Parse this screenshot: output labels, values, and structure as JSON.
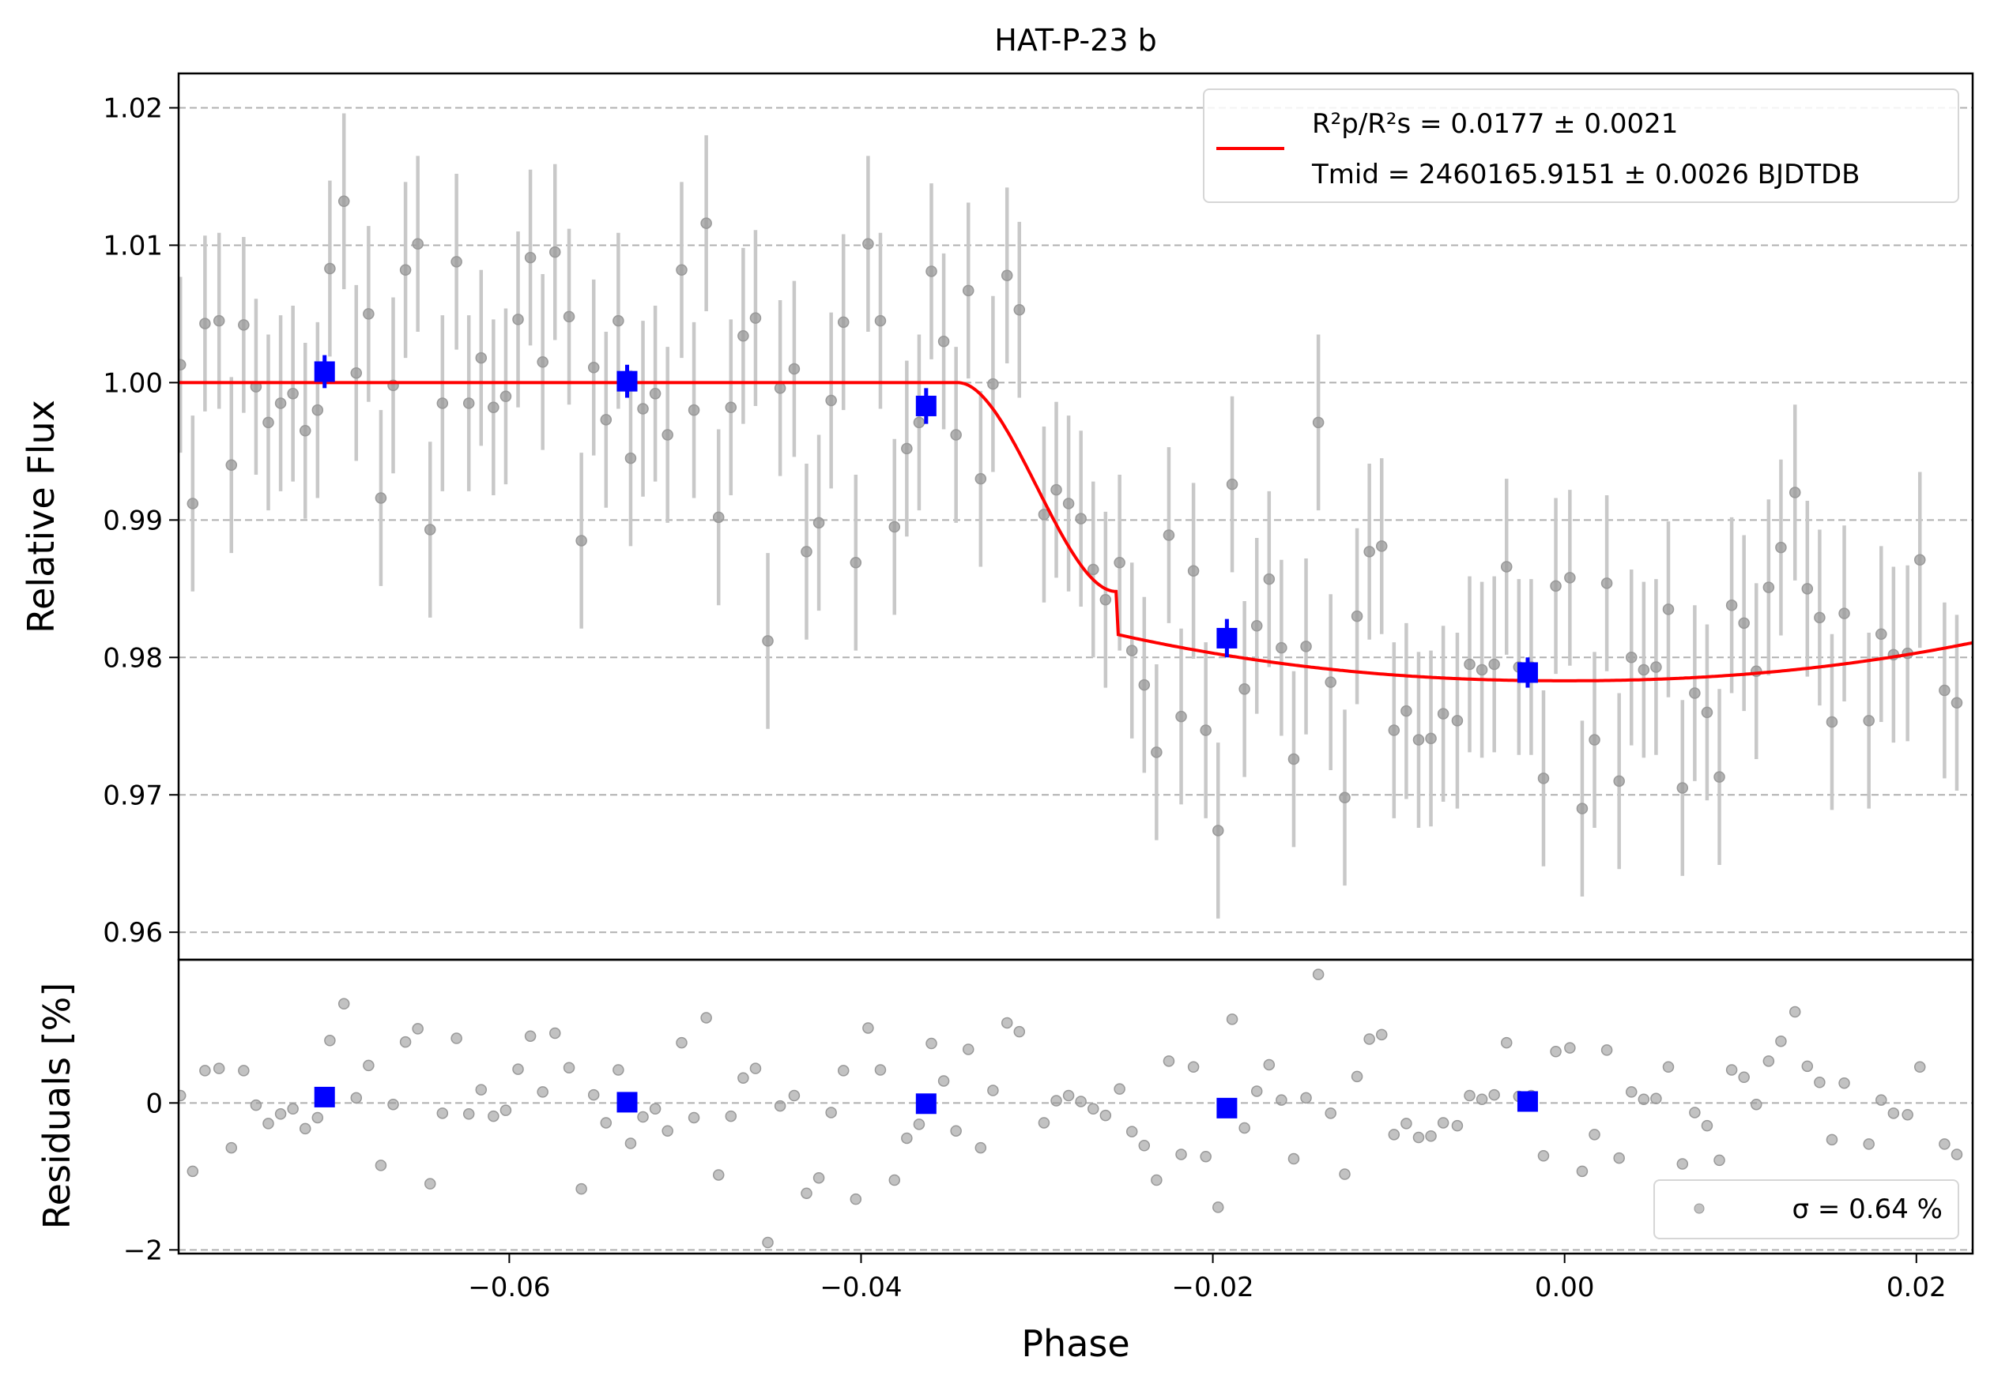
{
  "chart_data": {
    "type": "scatter",
    "title": "HAT-P-23 b",
    "top_panel": {
      "ylabel": "Relative Flux",
      "ylim": [
        0.958,
        1.0225
      ],
      "yticks": [
        {
          "v": 0.96,
          "label": "0.96"
        },
        {
          "v": 0.97,
          "label": "0.97"
        },
        {
          "v": 0.98,
          "label": "0.98"
        },
        {
          "v": 0.99,
          "label": "0.99"
        },
        {
          "v": 1.0,
          "label": "1.00"
        },
        {
          "v": 1.01,
          "label": "1.01"
        },
        {
          "v": 1.02,
          "label": "1.02"
        }
      ],
      "grid": true,
      "legend_position": "top-right",
      "legend": {
        "model_line_1": "R²p/R²s = 0.0177 ± 0.0021",
        "model_line_2": "Tmid = 2460165.9151 ± 0.0026 BJDTDB"
      },
      "binned_points": [
        {
          "x": -0.0705,
          "y": 1.0008,
          "err": 0.0012
        },
        {
          "x": -0.0533,
          "y": 1.0001,
          "err": 0.0012
        },
        {
          "x": -0.0363,
          "y": 0.9983,
          "err": 0.0013
        },
        {
          "x": -0.0192,
          "y": 0.9814,
          "err": 0.0014
        },
        {
          "x": -0.0021,
          "y": 0.9789,
          "err": 0.0011
        }
      ],
      "model": {
        "baseline": 1.0,
        "depth": 0.0217,
        "ingress_start": -0.0345,
        "ingress_end": -0.0255,
        "ingress_depth": 0.0152,
        "mid": 0.0,
        "egress_half_width": 0.0345
      },
      "point_error": 0.0064
    },
    "bottom_panel": {
      "ylabel": "Residuals [%]",
      "ylim": [
        -2.05,
        1.95
      ],
      "yticks": [
        {
          "v": -2,
          "label": "−2"
        },
        {
          "v": 0,
          "label": "0"
        }
      ],
      "gridlines": [
        -2,
        0
      ],
      "legend_position": "bottom-right",
      "legend": "σ = 0.64 %",
      "binned_residuals": [
        {
          "x": -0.0705,
          "y": 0.08
        },
        {
          "x": -0.0533,
          "y": 0.01
        },
        {
          "x": -0.0363,
          "y": -0.01
        },
        {
          "x": -0.0192,
          "y": -0.07
        },
        {
          "x": -0.0021,
          "y": 0.02
        }
      ]
    },
    "xlabel": "Phase",
    "xlim": [
      -0.0788,
      0.0232
    ],
    "xticks": [
      {
        "v": -0.06,
        "label": "−0.06"
      },
      {
        "v": -0.04,
        "label": "−0.04"
      },
      {
        "v": -0.02,
        "label": "−0.02"
      },
      {
        "v": 0.0,
        "label": "0.00"
      },
      {
        "v": 0.02,
        "label": "0.02"
      }
    ],
    "colors": {
      "model": "#ff0000",
      "binned": "#0000ff",
      "points": "#999999",
      "errorbars": "#c8c8c8",
      "grid": "#b0b0b0"
    },
    "points": [
      [
        -0.0787,
        1.0013
      ],
      [
        -0.078,
        0.9912
      ],
      [
        -0.0773,
        1.0043
      ],
      [
        -0.0765,
        1.0045
      ],
      [
        -0.0758,
        0.994
      ],
      [
        -0.0751,
        1.0042
      ],
      [
        -0.0744,
        0.9997
      ],
      [
        -0.0737,
        0.9971
      ],
      [
        -0.073,
        0.9985
      ],
      [
        -0.0723,
        0.9992
      ],
      [
        -0.0716,
        0.9965
      ],
      [
        -0.0709,
        0.998
      ],
      [
        -0.0702,
        1.0083
      ],
      [
        -0.0694,
        1.0132
      ],
      [
        -0.0687,
        1.0007
      ],
      [
        -0.068,
        1.005
      ],
      [
        -0.0673,
        0.9916
      ],
      [
        -0.0666,
        0.9998
      ],
      [
        -0.0659,
        1.0082
      ],
      [
        -0.0652,
        1.0101
      ],
      [
        -0.0645,
        0.9893
      ],
      [
        -0.0638,
        0.9985
      ],
      [
        -0.063,
        1.0088
      ],
      [
        -0.0623,
        0.9985
      ],
      [
        -0.0616,
        1.0018
      ],
      [
        -0.0609,
        0.9982
      ],
      [
        -0.0602,
        0.999
      ],
      [
        -0.0595,
        1.0046
      ],
      [
        -0.0588,
        1.0091
      ],
      [
        -0.0581,
        1.0015
      ],
      [
        -0.0574,
        1.0095
      ],
      [
        -0.0566,
        1.0048
      ],
      [
        -0.0559,
        0.9885
      ],
      [
        -0.0552,
        1.0011
      ],
      [
        -0.0545,
        0.9973
      ],
      [
        -0.0538,
        1.0045
      ],
      [
        -0.0531,
        0.9945
      ],
      [
        -0.0524,
        0.9981
      ],
      [
        -0.0517,
        0.9992
      ],
      [
        -0.051,
        0.9962
      ],
      [
        -0.0502,
        1.0082
      ],
      [
        -0.0495,
        0.998
      ],
      [
        -0.0488,
        1.0116
      ],
      [
        -0.0481,
        0.9902
      ],
      [
        -0.0474,
        0.9982
      ],
      [
        -0.0467,
        1.0034
      ],
      [
        -0.046,
        1.0047
      ],
      [
        -0.0453,
        0.9812
      ],
      [
        -0.0446,
        0.9996
      ],
      [
        -0.0438,
        1.001
      ],
      [
        -0.0431,
        0.9877
      ],
      [
        -0.0424,
        0.9898
      ],
      [
        -0.0417,
        0.9987
      ],
      [
        -0.041,
        1.0044
      ],
      [
        -0.0403,
        0.9869
      ],
      [
        -0.0396,
        1.0101
      ],
      [
        -0.0389,
        1.0045
      ],
      [
        -0.0381,
        0.9895
      ],
      [
        -0.0374,
        0.9952
      ],
      [
        -0.0367,
        0.9971
      ],
      [
        -0.036,
        1.0081
      ],
      [
        -0.0353,
        1.003
      ],
      [
        -0.0346,
        0.9962
      ],
      [
        -0.0339,
        1.0067
      ],
      [
        -0.0332,
        0.993
      ],
      [
        -0.0325,
        0.9999
      ],
      [
        -0.0317,
        1.0078
      ],
      [
        -0.031,
        1.0053
      ],
      [
        -0.0296,
        0.9904
      ],
      [
        -0.0289,
        0.9922
      ],
      [
        -0.0282,
        0.9912
      ],
      [
        -0.0275,
        0.9901
      ],
      [
        -0.0268,
        0.9864
      ],
      [
        -0.0261,
        0.9842
      ],
      [
        -0.0253,
        0.9869
      ],
      [
        -0.0246,
        0.9805
      ],
      [
        -0.0239,
        0.978
      ],
      [
        -0.0232,
        0.9731
      ],
      [
        -0.0225,
        0.9889
      ],
      [
        -0.0218,
        0.9757
      ],
      [
        -0.0211,
        0.9863
      ],
      [
        -0.0204,
        0.9747
      ],
      [
        -0.0197,
        0.9674
      ],
      [
        -0.0189,
        0.9926
      ],
      [
        -0.0182,
        0.9777
      ],
      [
        -0.0175,
        0.9823
      ],
      [
        -0.0168,
        0.9857
      ],
      [
        -0.0161,
        0.9807
      ],
      [
        -0.0154,
        0.9726
      ],
      [
        -0.0147,
        0.9808
      ],
      [
        -0.014,
        0.9971
      ],
      [
        -0.0133,
        0.9782
      ],
      [
        -0.0125,
        0.9698
      ],
      [
        -0.0118,
        0.983
      ],
      [
        -0.0111,
        0.9877
      ],
      [
        -0.0104,
        0.9881
      ],
      [
        -0.0097,
        0.9747
      ],
      [
        -0.009,
        0.9761
      ],
      [
        -0.0083,
        0.974
      ],
      [
        -0.0076,
        0.9741
      ],
      [
        -0.0069,
        0.9759
      ],
      [
        -0.0061,
        0.9754
      ],
      [
        -0.0054,
        0.9795
      ],
      [
        -0.0047,
        0.9791
      ],
      [
        -0.004,
        0.9795
      ],
      [
        -0.0033,
        0.9866
      ],
      [
        -0.0026,
        0.9793
      ],
      [
        -0.0019,
        0.9793
      ],
      [
        -0.0012,
        0.9712
      ],
      [
        -0.0005,
        0.9852
      ],
      [
        0.0003,
        0.9858
      ],
      [
        0.001,
        0.969
      ],
      [
        0.0017,
        0.974
      ],
      [
        0.0024,
        0.9854
      ],
      [
        0.0031,
        0.971
      ],
      [
        0.0038,
        0.98
      ],
      [
        0.0045,
        0.9791
      ],
      [
        0.0052,
        0.9793
      ],
      [
        0.0059,
        0.9835
      ],
      [
        0.0067,
        0.9705
      ],
      [
        0.0074,
        0.9774
      ],
      [
        0.0081,
        0.976
      ],
      [
        0.0088,
        0.9713
      ],
      [
        0.0095,
        0.9838
      ],
      [
        0.0102,
        0.9825
      ],
      [
        0.0109,
        0.979
      ],
      [
        0.0116,
        0.9851
      ],
      [
        0.0123,
        0.988
      ],
      [
        0.0131,
        0.992
      ],
      [
        0.0138,
        0.985
      ],
      [
        0.0145,
        0.9829
      ],
      [
        0.0152,
        0.9753
      ],
      [
        0.0159,
        0.9832
      ],
      [
        0.0173,
        0.9754
      ],
      [
        0.018,
        0.9817
      ],
      [
        0.0187,
        0.9802
      ],
      [
        0.0195,
        0.9803
      ],
      [
        0.0202,
        0.9871
      ],
      [
        0.0216,
        0.9776
      ],
      [
        0.0223,
        0.9767
      ]
    ],
    "residuals": [
      [
        -0.0787,
        0.1
      ],
      [
        -0.078,
        -0.93
      ],
      [
        -0.0773,
        0.44
      ],
      [
        -0.0765,
        0.47
      ],
      [
        -0.0758,
        -0.61
      ],
      [
        -0.0751,
        0.44
      ],
      [
        -0.0744,
        -0.03
      ],
      [
        -0.0737,
        -0.28
      ],
      [
        -0.073,
        -0.15
      ],
      [
        -0.0723,
        -0.08
      ],
      [
        -0.0716,
        -0.35
      ],
      [
        -0.0709,
        -0.2
      ],
      [
        -0.0702,
        0.85
      ],
      [
        -0.0694,
        1.35
      ],
      [
        -0.0687,
        0.07
      ],
      [
        -0.068,
        0.51
      ],
      [
        -0.0673,
        -0.85
      ],
      [
        -0.0666,
        -0.02
      ],
      [
        -0.0659,
        0.83
      ],
      [
        -0.0652,
        1.01
      ],
      [
        -0.0645,
        -1.1
      ],
      [
        -0.0638,
        -0.14
      ],
      [
        -0.063,
        0.88
      ],
      [
        -0.0623,
        -0.15
      ],
      [
        -0.0616,
        0.18
      ],
      [
        -0.0609,
        -0.18
      ],
      [
        -0.0602,
        -0.1
      ],
      [
        -0.0595,
        0.46
      ],
      [
        -0.0588,
        0.91
      ],
      [
        -0.0581,
        0.15
      ],
      [
        -0.0574,
        0.95
      ],
      [
        -0.0566,
        0.48
      ],
      [
        -0.0559,
        -1.17
      ],
      [
        -0.0552,
        0.11
      ],
      [
        -0.0545,
        -0.27
      ],
      [
        -0.0538,
        0.45
      ],
      [
        -0.0531,
        -0.55
      ],
      [
        -0.0524,
        -0.19
      ],
      [
        -0.0517,
        -0.08
      ],
      [
        -0.051,
        -0.38
      ],
      [
        -0.0502,
        0.82
      ],
      [
        -0.0495,
        -0.2
      ],
      [
        -0.0488,
        1.16
      ],
      [
        -0.0481,
        -0.98
      ],
      [
        -0.0474,
        -0.18
      ],
      [
        -0.0467,
        0.34
      ],
      [
        -0.046,
        0.47
      ],
      [
        -0.0453,
        -1.9
      ],
      [
        -0.0446,
        -0.04
      ],
      [
        -0.0438,
        0.1
      ],
      [
        -0.0431,
        -1.23
      ],
      [
        -0.0424,
        -1.02
      ],
      [
        -0.0417,
        -0.13
      ],
      [
        -0.041,
        0.44
      ],
      [
        -0.0403,
        -1.31
      ],
      [
        -0.0396,
        1.02
      ],
      [
        -0.0389,
        0.45
      ],
      [
        -0.0381,
        -1.05
      ],
      [
        -0.0374,
        -0.48
      ],
      [
        -0.0367,
        -0.29
      ],
      [
        -0.036,
        0.81
      ],
      [
        -0.0353,
        0.3
      ],
      [
        -0.0346,
        -0.38
      ],
      [
        -0.0339,
        0.73
      ],
      [
        -0.0332,
        -0.61
      ],
      [
        -0.0325,
        0.17
      ],
      [
        -0.0317,
        1.09
      ],
      [
        -0.031,
        0.97
      ],
      [
        -0.0296,
        -0.27
      ],
      [
        -0.0289,
        0.03
      ],
      [
        -0.0282,
        0.1
      ],
      [
        -0.0275,
        0.02
      ],
      [
        -0.0268,
        -0.08
      ],
      [
        -0.0261,
        -0.17
      ],
      [
        -0.0253,
        0.19
      ],
      [
        -0.0246,
        -0.39
      ],
      [
        -0.0239,
        -0.58
      ],
      [
        -0.0232,
        -1.05
      ],
      [
        -0.0225,
        0.57
      ],
      [
        -0.0218,
        -0.7
      ],
      [
        -0.0211,
        0.49
      ],
      [
        -0.0204,
        -0.73
      ],
      [
        -0.0197,
        -1.42
      ],
      [
        -0.0189,
        1.14
      ],
      [
        -0.0182,
        -0.34
      ],
      [
        -0.0175,
        0.16
      ],
      [
        -0.0168,
        0.52
      ],
      [
        -0.0161,
        0.04
      ],
      [
        -0.0154,
        -0.76
      ],
      [
        -0.0147,
        0.07
      ],
      [
        -0.014,
        1.75
      ],
      [
        -0.0133,
        -0.14
      ],
      [
        -0.0125,
        -0.97
      ],
      [
        -0.0118,
        0.36
      ],
      [
        -0.0111,
        0.87
      ],
      [
        -0.0104,
        0.93
      ],
      [
        -0.0097,
        -0.43
      ],
      [
        -0.009,
        -0.28
      ],
      [
        -0.0083,
        -0.47
      ],
      [
        -0.0076,
        -0.45
      ],
      [
        -0.0069,
        -0.27
      ],
      [
        -0.0061,
        -0.31
      ],
      [
        -0.0054,
        0.1
      ],
      [
        -0.0047,
        0.05
      ],
      [
        -0.004,
        0.11
      ],
      [
        -0.0033,
        0.82
      ],
      [
        -0.0026,
        0.09
      ],
      [
        -0.0019,
        0.1
      ],
      [
        -0.0012,
        -0.72
      ],
      [
        -0.0005,
        0.7
      ],
      [
        0.0003,
        0.75
      ],
      [
        0.001,
        -0.93
      ],
      [
        0.0017,
        -0.43
      ],
      [
        0.0024,
        0.72
      ],
      [
        0.0031,
        -0.75
      ],
      [
        0.0038,
        0.15
      ],
      [
        0.0045,
        0.05
      ],
      [
        0.0052,
        0.06
      ],
      [
        0.0059,
        0.49
      ],
      [
        0.0067,
        -0.83
      ],
      [
        0.0074,
        -0.13
      ],
      [
        0.0081,
        -0.31
      ],
      [
        0.0088,
        -0.78
      ],
      [
        0.0095,
        0.45
      ],
      [
        0.0102,
        0.35
      ],
      [
        0.0109,
        -0.02
      ],
      [
        0.0116,
        0.57
      ],
      [
        0.0123,
        0.84
      ],
      [
        0.0131,
        1.24
      ],
      [
        0.0138,
        0.5
      ],
      [
        0.0145,
        0.28
      ],
      [
        0.0152,
        -0.5
      ],
      [
        0.0159,
        0.27
      ],
      [
        0.0173,
        -0.56
      ],
      [
        0.018,
        0.04
      ],
      [
        0.0187,
        -0.14
      ],
      [
        0.0195,
        -0.16
      ],
      [
        0.0202,
        0.49
      ],
      [
        0.0216,
        -0.56
      ],
      [
        0.0223,
        -0.7
      ]
    ]
  }
}
